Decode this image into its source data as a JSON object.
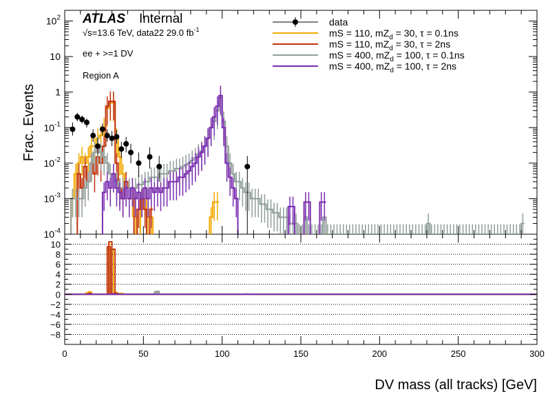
{
  "chart_data": {
    "type": "histogram",
    "title": "",
    "header": {
      "experiment": "ATLAS",
      "status": "Internal",
      "energy_line": "√s=13.6 TeV, data22 29.0 fb",
      "energy_sup": "-1",
      "selection": "ee + >=1 DV",
      "region": "Region A"
    },
    "xlabel": "DV mass (all tracks) [GeV]",
    "xlim": [
      0,
      300
    ],
    "x_ticks": [
      0,
      50,
      100,
      150,
      200,
      250,
      300
    ],
    "x_tick_labels": [
      "0",
      "50",
      "100",
      "150",
      "200",
      "250",
      "300"
    ],
    "top": {
      "ylabel": "Frac. Events",
      "scale": "log",
      "ylim": [
        0.0001,
        200
      ],
      "y_ticks": [
        0.0001,
        0.001,
        0.01,
        0.1,
        1,
        10,
        100
      ],
      "y_tick_labels": [
        {
          "base": "10",
          "exp": "-4"
        },
        {
          "base": "10",
          "exp": "-3"
        },
        {
          "base": "10",
          "exp": "-2"
        },
        {
          "base": "10",
          "exp": "-1"
        },
        {
          "base": "1",
          "exp": ""
        },
        {
          "base": "10",
          "exp": ""
        },
        {
          "base": "10",
          "exp": "2"
        }
      ]
    },
    "ratio": {
      "ylim": [
        -10,
        12
      ],
      "y_ticks": [
        -8,
        -6,
        -4,
        -2,
        0,
        2,
        4,
        6,
        8,
        10
      ],
      "y_tick_labels": [
        "−8",
        "−6",
        "−4",
        "−2",
        "0",
        "2",
        "4",
        "6",
        "8",
        "10"
      ],
      "grid": true
    },
    "legend": [
      {
        "label": "data",
        "color": "#000000",
        "marker": "point"
      },
      {
        "label": "mS = 110, mZ = 30, τ = 0.1ns",
        "sub": "d",
        "color": "#f2a900",
        "marker": "line"
      },
      {
        "label": "mS = 110, mZ = 30, τ = 2ns",
        "sub": "d",
        "color": "#c0300a",
        "marker": "line"
      },
      {
        "label": "mS = 400, mZ = 100, τ = 0.1ns",
        "sub": "d",
        "color": "#8f9e9a",
        "marker": "line"
      },
      {
        "label": "mS = 400, mZ = 100, τ = 2ns",
        "sub": "d",
        "color": "#7b2cb0",
        "marker": "line"
      }
    ],
    "data_points": [
      {
        "x": 5,
        "y": 0.09,
        "err": [
          0.06,
          0.14
        ]
      },
      {
        "x": 8,
        "y": 0.2,
        "err": [
          0.15,
          0.26
        ]
      },
      {
        "x": 11,
        "y": 0.17,
        "err": [
          0.13,
          0.22
        ]
      },
      {
        "x": 14,
        "y": 0.14,
        "err": [
          0.1,
          0.18
        ]
      },
      {
        "x": 18,
        "y": 0.06,
        "err": [
          0.04,
          0.09
        ]
      },
      {
        "x": 21,
        "y": 0.03,
        "err": [
          0.018,
          0.05
        ]
      },
      {
        "x": 24,
        "y": 0.09,
        "err": [
          0.06,
          0.13
        ]
      },
      {
        "x": 27,
        "y": 0.06,
        "err": [
          0.04,
          0.09
        ]
      },
      {
        "x": 30,
        "y": 0.05,
        "err": [
          0.03,
          0.08
        ]
      },
      {
        "x": 33,
        "y": 0.055,
        "err": [
          0.035,
          0.085
        ]
      },
      {
        "x": 36,
        "y": 0.025,
        "err": [
          0.014,
          0.04
        ]
      },
      {
        "x": 39,
        "y": 0.035,
        "err": [
          0.02,
          0.055
        ]
      },
      {
        "x": 42,
        "y": 0.02,
        "err": [
          0.01,
          0.035
        ]
      },
      {
        "x": 47,
        "y": 0.01,
        "err": [
          0.004,
          0.02
        ]
      },
      {
        "x": 54,
        "y": 0.015,
        "err": [
          0.007,
          0.028
        ]
      },
      {
        "x": 60,
        "y": 0.008,
        "err": [
          0.003,
          0.016
        ]
      },
      {
        "x": 116,
        "y": 0.008,
        "err": [
          0.0001,
          0.016
        ]
      }
    ],
    "series": [
      {
        "name": "mS = 110, mZd = 30, τ = 0.1ns",
        "color": "#f2a900",
        "bin_width": 2,
        "values": [
          0,
          0,
          0.001,
          0.005,
          0.01,
          0.015,
          0.01,
          0.015,
          0.03,
          0.03,
          0.05,
          0.06,
          0.1,
          0.35,
          0.5,
          0.5,
          0.05,
          0.015,
          0.005,
          0.003,
          0.001,
          0.001,
          0.0003,
          0,
          0.001,
          0.001,
          0.0003,
          0.0003,
          0,
          0,
          0,
          0,
          0,
          0,
          0,
          0,
          0,
          0,
          0,
          0,
          0,
          0,
          0,
          0,
          0,
          0,
          0.0003,
          0.0008,
          0.0008
        ]
      },
      {
        "name": "mS = 110, mZd = 30, τ = 2ns",
        "color": "#c0300a",
        "bin_width": 2,
        "values": [
          0,
          0,
          0,
          0,
          0.005,
          0.002,
          0.008,
          0.003,
          0.01,
          0.005,
          0.015,
          0.01,
          0.03,
          0.4,
          0.55,
          0.55,
          0.01,
          0.002,
          0.001,
          0.003,
          0.001,
          0.002,
          0,
          0.0005,
          0.001,
          0.0005,
          0,
          0.0005
        ]
      },
      {
        "name": "mS = 400, mZd = 100, τ = 0.1ns",
        "color": "#8f9e9a",
        "bin_width": 2,
        "values": [
          0,
          0,
          0.001,
          0.001,
          0.001,
          0.001,
          0.002,
          0.003,
          0.01,
          0.02,
          0.03,
          0.02,
          0.015,
          0.01,
          0.005,
          0.005,
          0.003,
          0.002,
          0.002,
          0.002,
          0.002,
          0.002,
          0.002,
          0.0025,
          0.0025,
          0.003,
          0.003,
          0.004,
          0.004,
          0.004,
          0.005,
          0.005,
          0.005,
          0.006,
          0.006,
          0.007,
          0.007,
          0.008,
          0.009,
          0.01,
          0.012,
          0.014,
          0.018,
          0.022,
          0.03,
          0.05,
          0.1,
          0.15,
          0.3,
          0.7,
          0.15,
          0.03,
          0.01,
          0.005,
          0.003,
          0.003,
          0.002,
          0.0015,
          0.0015,
          0.001,
          0.001,
          0.001,
          0.0007,
          0.0007,
          0.0005,
          0.0005,
          0.0004,
          0.0004,
          0.0003,
          0.0003,
          0.0003,
          0.0002,
          0.0002,
          0.0002,
          0.0001,
          0.0001,
          0.0003,
          0.0001,
          0.0001,
          0.0001,
          0.0001,
          0.0001,
          0.0003,
          0.0001,
          0.0001,
          0.0001,
          0.0001,
          0.0001,
          0.0001,
          0.0001,
          0.0001,
          0.0001,
          0.0001,
          0.0001,
          0.0001,
          0.0001,
          0.0001,
          0.0001,
          0.0001,
          0.0001,
          0.0001,
          0.0001,
          0.0001,
          0.0001,
          0.0001,
          0.0001,
          0.0001,
          0.0001,
          0.0001,
          0.0001,
          0.0001,
          0.0001,
          0.0001,
          0.0001,
          0.0001,
          0.0002,
          0.0001,
          0.0001,
          0.0001,
          0.0001,
          0.0001,
          0.0001,
          0.0001,
          0.0001,
          0.0001,
          0.0001,
          0.0001,
          0.0001,
          0.0001,
          0.0001,
          0.0001,
          0.0001,
          0.0001,
          0.0001,
          0.0001,
          0.0001,
          0.0001,
          0.0001,
          0.0001,
          0.0001,
          0.0001,
          0.0001,
          0.0001,
          0.0001,
          0.0001,
          0.0002
        ]
      },
      {
        "name": "mS = 400, mZd = 100, τ = 2ns",
        "color": "#7b2cb0",
        "bin_width": 2,
        "values": [
          0,
          0,
          0,
          0,
          0,
          0,
          0,
          0,
          0,
          0,
          0,
          0,
          0.0015,
          0.003,
          0.002,
          0.005,
          0.002,
          0.0015,
          0.001,
          0.002,
          0.001,
          0.002,
          0.001,
          0.0015,
          0.001,
          0.002,
          0.001,
          0.002,
          0.0015,
          0.002,
          0.0015,
          0.002,
          0.002,
          0.003,
          0.003,
          0.003,
          0.004,
          0.004,
          0.005,
          0.006,
          0.008,
          0.01,
          0.015,
          0.02,
          0.03,
          0.05,
          0.1,
          0.2,
          0.4,
          0.8,
          0.1,
          0.01,
          0.004,
          0.002,
          0.001,
          0,
          0,
          0,
          0,
          0,
          0,
          0,
          0,
          0,
          0,
          0,
          0,
          0,
          0,
          0,
          0,
          0.0006,
          0.0006,
          0,
          0,
          0,
          0.0008,
          0.0008,
          0,
          0,
          0,
          0.0008,
          0.0008
        ]
      }
    ],
    "ratio_series": [
      {
        "color": "#f2a900",
        "values": [
          [
            13,
            0.2
          ],
          [
            14,
            0.3
          ],
          [
            15,
            0.5
          ],
          [
            27,
            9
          ],
          [
            28,
            10
          ],
          [
            29,
            9
          ],
          [
            31,
            0.4
          ],
          [
            35,
            0.2
          ],
          [
            58,
            0.5
          ]
        ]
      },
      {
        "color": "#c0300a",
        "values": [
          [
            15,
            0.2
          ],
          [
            27,
            9.5
          ],
          [
            28,
            10.5
          ],
          [
            30,
            9
          ],
          [
            32,
            0.2
          ]
        ]
      },
      {
        "color": "#8f9e9a",
        "values": [
          [
            57,
            0.5
          ],
          [
            58,
            0.6
          ],
          [
            115,
            0.1
          ]
        ]
      },
      {
        "color": "#7b2cb0",
        "values": [
          [
            30,
            0.1
          ]
        ]
      }
    ]
  }
}
